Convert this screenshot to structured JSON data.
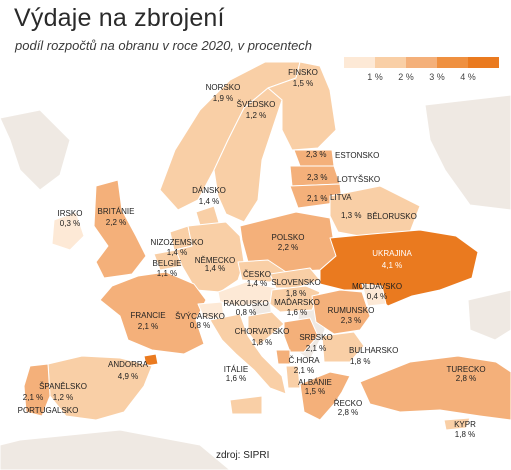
{
  "title": "Výdaje na zbrojení",
  "subtitle": "podíl rozpočtů na obranu v roce 2020, v procentech",
  "source": "zdroj: SIPRI",
  "legend": {
    "labels": [
      "1 %",
      "2 %",
      "3 %",
      "4 %"
    ],
    "colors": [
      "#fde9d6",
      "#f9cfa6",
      "#f4b07a",
      "#ef9040",
      "#ea7a1f"
    ]
  },
  "colors": {
    "sea": "#ffffff",
    "land_gray": "#efe9e3",
    "border": "#ffffff"
  },
  "countries": [
    {
      "name": "NORSKO",
      "value": "1,9 %"
    },
    {
      "name": "FINSKO",
      "value": "1,5 %"
    },
    {
      "name": "ŠVÉDSKO",
      "value": "1,2 %"
    },
    {
      "name": "ESTONSKO",
      "value": "2,3 %"
    },
    {
      "name": "LOTYŠSKO",
      "value": "2,3 %"
    },
    {
      "name": "LITVA",
      "value": "2,1 %"
    },
    {
      "name": "BĚLORUSKO",
      "value": "1,3 %"
    },
    {
      "name": "DÁNSKO",
      "value": "1,4 %"
    },
    {
      "name": "IRSKO",
      "value": "0,3 %"
    },
    {
      "name": "BRITÁNIE",
      "value": "2,2 %"
    },
    {
      "name": "NIZOZEMSKO",
      "value": "1,4 %"
    },
    {
      "name": "BELGIE",
      "value": "1,1 %"
    },
    {
      "name": "NĚMECKO",
      "value": "1,4 %"
    },
    {
      "name": "POLSKO",
      "value": "2,2 %"
    },
    {
      "name": "ČESKO",
      "value": "1,4 %"
    },
    {
      "name": "SLOVENSKO",
      "value": "1,8 %"
    },
    {
      "name": "UKRAJINA",
      "value": "4,1 %"
    },
    {
      "name": "MOLDAVSKO",
      "value": "0,4 %"
    },
    {
      "name": "RAKOUSKO",
      "value": "0,8 %"
    },
    {
      "name": "MAĎARSKO",
      "value": "1,6 %"
    },
    {
      "name": "RUMUNSKO",
      "value": "2,3 %"
    },
    {
      "name": "FRANCIE",
      "value": "2,1 %"
    },
    {
      "name": "ŠVÝCARSKO",
      "value": "0,8 %"
    },
    {
      "name": "CHORVATSKO",
      "value": "1,8 %"
    },
    {
      "name": "SRBSKO",
      "value": "2,1 %"
    },
    {
      "name": "BULHARSKO",
      "value": "1,8 %"
    },
    {
      "name": "Č.HORA",
      "value": "2,1 %"
    },
    {
      "name": "ALBÁNIE",
      "value": "1,5 %"
    },
    {
      "name": "ANDORRA",
      "value": "4,9 %"
    },
    {
      "name": "ŠPANĚLSKO",
      "value": "1,2 %"
    },
    {
      "name": "PORTUGALSKO",
      "value": "2,1 %"
    },
    {
      "name": "ITÁLIE",
      "value": "1,6 %"
    },
    {
      "name": "ŘECKO",
      "value": "2,8 %"
    },
    {
      "name": "TURECKO",
      "value": "2,8 %"
    },
    {
      "name": "KYPR",
      "value": "1,8 %"
    }
  ]
}
